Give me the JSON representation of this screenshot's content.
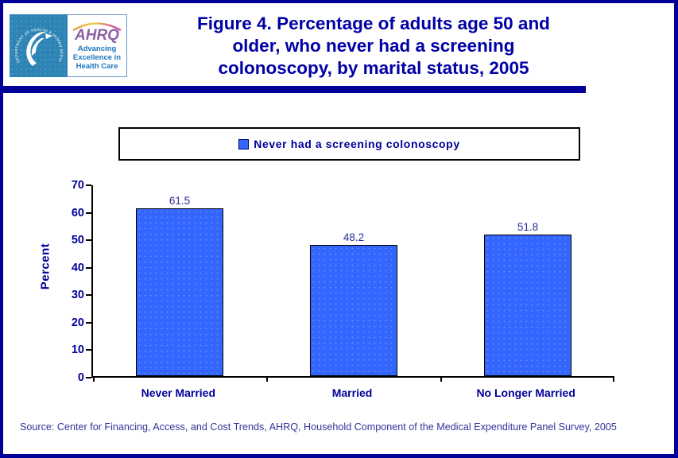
{
  "header": {
    "logo": {
      "hhs_ring_text": "DEPARTMENT OF HEALTH & HUMAN SERVICES • USA",
      "ahrq_acronym": "AHRQ",
      "ahrq_tagline": "Advancing\nExcellence in\nHealth Care"
    },
    "title_lines": [
      "Figure 4. Percentage of adults age 50 and",
      "older, who never had a screening",
      "colonoscopy, by marital status, 2005"
    ]
  },
  "legend": {
    "label": "Never had a screening colonoscopy"
  },
  "chart_data": {
    "type": "bar",
    "title": "Figure 4. Percentage of adults age 50 and older, who never had a screening colonoscopy, by marital status, 2005",
    "categories": [
      "Never Married",
      "Married",
      "No Longer Married"
    ],
    "values": [
      61.5,
      48.2,
      51.8
    ],
    "series": [
      {
        "name": "Never had a screening colonoscopy",
        "values": [
          61.5,
          48.2,
          51.8
        ]
      }
    ],
    "xlabel": "",
    "ylabel": "Percent",
    "ylim": [
      0,
      70
    ],
    "yticks": [
      0,
      10,
      20,
      30,
      40,
      50,
      60,
      70
    ],
    "grid": false,
    "legend_position": "top",
    "data_labels": true,
    "bar_color": "#3366FF"
  },
  "footer": {
    "source": "Source: Center for Financing, Access, and Cost Trends, AHRQ, Household Component of the Medical Expenditure Panel Survey, 2005"
  },
  "colors": {
    "navy": "#000099",
    "title_navy": "#0000A6",
    "bar_blue": "#3366FF",
    "hhs_blue": "#2E85B5",
    "ahrq_purple": "#8C5FA6",
    "tagline_blue": "#1B75BC",
    "axis_black": "#000000"
  }
}
